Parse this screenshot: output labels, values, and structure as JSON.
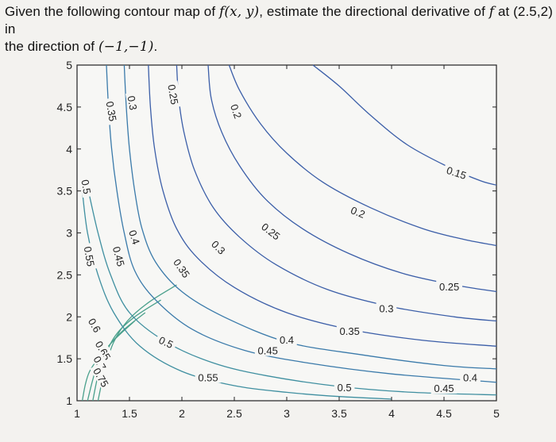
{
  "question": {
    "line1_prefix": "Given the following contour map of ",
    "line1_func": "f(x, y)",
    "line1_mid": ", estimate the directional derivative of ",
    "line1_f": "f",
    "line1_at": " at (2.5,2) in",
    "line2_prefix": "the direction of ",
    "line2_vec": "(−1,−1)",
    "line2_suffix": "."
  },
  "chart_data": {
    "type": "contour",
    "xlim": [
      1,
      5
    ],
    "ylim": [
      1,
      5
    ],
    "x_ticks": [
      "1",
      "1.5",
      "2",
      "2.5",
      "3",
      "3.5",
      "4",
      "4.5",
      "5"
    ],
    "y_ticks": [
      "1",
      "1.5",
      "2",
      "2.5",
      "3",
      "3.5",
      "4",
      "4.5",
      "5"
    ],
    "grid": false,
    "line_color": "#3b5ea8",
    "levels": [
      {
        "value": 0.75,
        "label": "0.75",
        "points": [
          [
            1.05,
            1.0
          ],
          [
            1.08,
            1.2
          ],
          [
            1.12,
            1.35
          ],
          [
            1.2,
            1.5
          ],
          [
            1.35,
            1.72
          ],
          [
            1.55,
            1.95
          ]
        ]
      },
      {
        "value": 0.7,
        "label": "0.7",
        "points": [
          [
            1.1,
            1.0
          ],
          [
            1.15,
            1.25
          ],
          [
            1.2,
            1.45
          ],
          [
            1.3,
            1.65
          ],
          [
            1.45,
            1.85
          ],
          [
            1.65,
            2.05
          ]
        ]
      },
      {
        "value": 0.65,
        "label": "0.65",
        "points": [
          [
            1.15,
            1.0
          ],
          [
            1.2,
            1.3
          ],
          [
            1.27,
            1.55
          ],
          [
            1.38,
            1.8
          ],
          [
            1.55,
            2.0
          ],
          [
            1.8,
            2.2
          ]
        ]
      },
      {
        "value": 0.6,
        "label": "0.6",
        "points": [
          [
            1.2,
            1.0
          ],
          [
            1.27,
            1.4
          ],
          [
            1.35,
            1.7
          ],
          [
            1.48,
            1.95
          ],
          [
            1.68,
            2.17
          ],
          [
            1.95,
            2.38
          ]
        ]
      },
      {
        "value": 0.55,
        "label": "0.55",
        "points": [
          [
            1.05,
            3.5
          ],
          [
            1.1,
            3.0
          ],
          [
            1.2,
            2.5
          ],
          [
            1.35,
            2.05
          ],
          [
            1.6,
            1.65
          ],
          [
            2.0,
            1.35
          ],
          [
            2.5,
            1.18
          ],
          [
            3.0,
            1.1
          ],
          [
            3.5,
            1.05
          ],
          [
            4.0,
            1.02
          ]
        ]
      },
      {
        "value": 0.5,
        "label": "0.5",
        "points": [
          [
            1.1,
            3.55
          ],
          [
            1.2,
            3.0
          ],
          [
            1.32,
            2.5
          ],
          [
            1.5,
            2.05
          ],
          [
            1.85,
            1.7
          ],
          [
            2.3,
            1.45
          ],
          [
            2.8,
            1.3
          ],
          [
            3.5,
            1.17
          ],
          [
            4.2,
            1.1
          ],
          [
            5.0,
            1.07
          ]
        ]
      },
      {
        "value": 0.45,
        "label": "0.45",
        "points": [
          [
            1.28,
            5.0
          ],
          [
            1.3,
            4.5
          ],
          [
            1.33,
            4.0
          ],
          [
            1.38,
            3.5
          ],
          [
            1.45,
            3.0
          ],
          [
            1.55,
            2.55
          ],
          [
            1.75,
            2.2
          ],
          [
            2.1,
            1.85
          ],
          [
            2.6,
            1.6
          ],
          [
            3.2,
            1.45
          ],
          [
            4.0,
            1.32
          ],
          [
            5.0,
            1.22
          ]
        ]
      },
      {
        "value": 0.4,
        "label": "0.4",
        "points": [
          [
            1.45,
            5.0
          ],
          [
            1.47,
            4.5
          ],
          [
            1.5,
            4.0
          ],
          [
            1.55,
            3.5
          ],
          [
            1.62,
            3.05
          ],
          [
            1.75,
            2.65
          ],
          [
            2.0,
            2.3
          ],
          [
            2.4,
            2.0
          ],
          [
            3.0,
            1.7
          ],
          [
            3.7,
            1.55
          ],
          [
            4.5,
            1.42
          ],
          [
            5.0,
            1.38
          ]
        ]
      },
      {
        "value": 0.35,
        "label": "0.35",
        "points": [
          [
            1.68,
            5.0
          ],
          [
            1.7,
            4.5
          ],
          [
            1.74,
            4.0
          ],
          [
            1.82,
            3.5
          ],
          [
            1.95,
            3.05
          ],
          [
            2.15,
            2.7
          ],
          [
            2.5,
            2.35
          ],
          [
            3.0,
            2.05
          ],
          [
            3.6,
            1.85
          ],
          [
            4.3,
            1.72
          ],
          [
            5.0,
            1.65
          ]
        ]
      },
      {
        "value": 0.3,
        "label": "0.3",
        "points": [
          [
            1.95,
            5.0
          ],
          [
            1.97,
            4.6
          ],
          [
            2.02,
            4.2
          ],
          [
            2.12,
            3.75
          ],
          [
            2.3,
            3.3
          ],
          [
            2.55,
            2.95
          ],
          [
            2.9,
            2.62
          ],
          [
            3.4,
            2.32
          ],
          [
            4.0,
            2.12
          ],
          [
            4.6,
            2.0
          ],
          [
            5.0,
            1.95
          ]
        ]
      },
      {
        "value": 0.25,
        "label": "0.25",
        "points": [
          [
            2.25,
            5.0
          ],
          [
            2.28,
            4.6
          ],
          [
            2.38,
            4.2
          ],
          [
            2.55,
            3.8
          ],
          [
            2.8,
            3.4
          ],
          [
            3.15,
            3.05
          ],
          [
            3.6,
            2.75
          ],
          [
            4.1,
            2.52
          ],
          [
            4.6,
            2.38
          ],
          [
            5.0,
            2.3
          ]
        ]
      },
      {
        "value": 0.2,
        "label": "0.2",
        "points": [
          [
            2.45,
            5.0
          ],
          [
            2.55,
            4.7
          ],
          [
            2.75,
            4.3
          ],
          [
            3.0,
            3.95
          ],
          [
            3.35,
            3.6
          ],
          [
            3.8,
            3.3
          ],
          [
            4.3,
            3.05
          ],
          [
            4.7,
            2.92
          ],
          [
            5.0,
            2.85
          ]
        ]
      },
      {
        "value": 0.15,
        "label": "0.15",
        "points": [
          [
            3.25,
            5.0
          ],
          [
            3.5,
            4.75
          ],
          [
            3.8,
            4.4
          ],
          [
            4.15,
            4.05
          ],
          [
            4.55,
            3.78
          ],
          [
            4.85,
            3.62
          ],
          [
            5.0,
            3.57
          ]
        ]
      }
    ],
    "labels": [
      {
        "text": "0.25",
        "x": 1.92,
        "y": 4.65,
        "rot": 80
      },
      {
        "text": "0.2",
        "x": 2.52,
        "y": 4.45,
        "rot": 70
      },
      {
        "text": "0.3",
        "x": 1.53,
        "y": 4.55,
        "rot": 80
      },
      {
        "text": "0.35",
        "x": 1.33,
        "y": 4.45,
        "rot": 80
      },
      {
        "text": "0.5",
        "x": 1.09,
        "y": 3.55,
        "rot": 80
      },
      {
        "text": "0.4",
        "x": 1.55,
        "y": 2.95,
        "rot": 72
      },
      {
        "text": "0.45",
        "x": 1.4,
        "y": 2.72,
        "rot": 75
      },
      {
        "text": "0.55",
        "x": 1.12,
        "y": 2.72,
        "rot": 80
      },
      {
        "text": "0.25",
        "x": 2.85,
        "y": 3.02,
        "rot": 38
      },
      {
        "text": "0.2",
        "x": 3.68,
        "y": 3.25,
        "rot": 22
      },
      {
        "text": "0.15",
        "x": 4.62,
        "y": 3.72,
        "rot": 18
      },
      {
        "text": "0.3",
        "x": 2.35,
        "y": 2.83,
        "rot": 45
      },
      {
        "text": "0.35",
        "x": 2.0,
        "y": 2.58,
        "rot": 55
      },
      {
        "text": "0.25",
        "x": 4.55,
        "y": 2.36,
        "rot": 0
      },
      {
        "text": "0.3",
        "x": 3.95,
        "y": 2.1,
        "rot": 0
      },
      {
        "text": "0.35",
        "x": 3.6,
        "y": 1.83,
        "rot": 0
      },
      {
        "text": "0.4",
        "x": 3.0,
        "y": 1.73,
        "rot": 0
      },
      {
        "text": "0.45",
        "x": 2.82,
        "y": 1.6,
        "rot": 0
      },
      {
        "text": "0.5",
        "x": 1.85,
        "y": 1.7,
        "rot": 25
      },
      {
        "text": "0.55",
        "x": 2.25,
        "y": 1.28,
        "rot": 0
      },
      {
        "text": "0.5",
        "x": 3.55,
        "y": 1.16,
        "rot": 0
      },
      {
        "text": "0.45",
        "x": 4.5,
        "y": 1.15,
        "rot": 0
      },
      {
        "text": "0.4",
        "x": 4.75,
        "y": 1.28,
        "rot": 0
      },
      {
        "text": "0.6",
        "x": 1.17,
        "y": 1.9,
        "rot": 60
      },
      {
        "text": "0.65",
        "x": 1.25,
        "y": 1.6,
        "rot": 60
      },
      {
        "text": "0.7",
        "x": 1.22,
        "y": 1.45,
        "rot": 60
      },
      {
        "text": "0.75",
        "x": 1.23,
        "y": 1.28,
        "rot": 60
      }
    ]
  }
}
